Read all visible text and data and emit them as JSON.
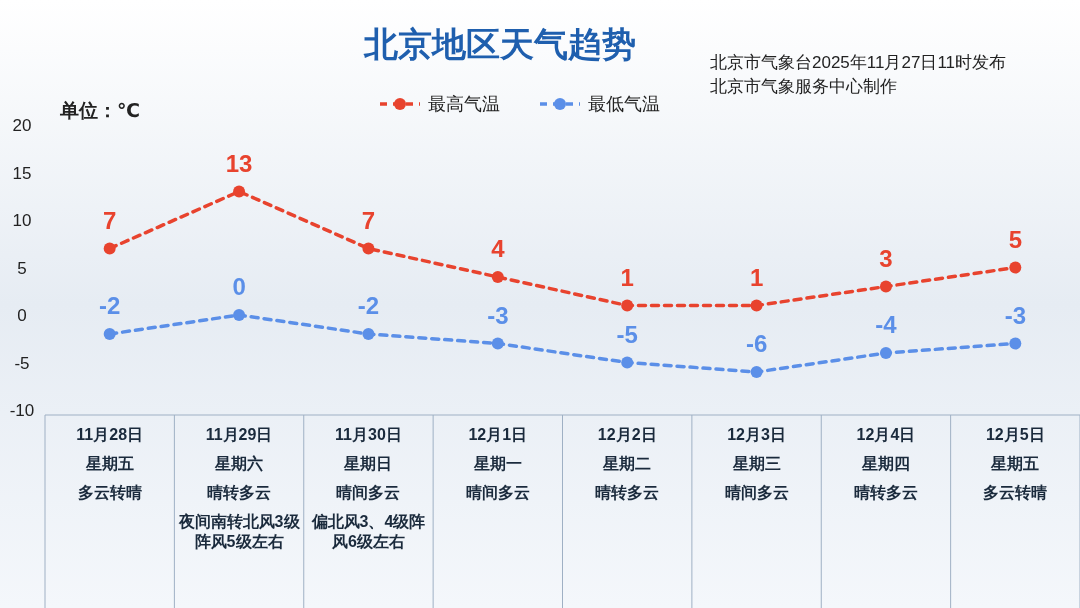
{
  "chart_data": {
    "type": "line",
    "title": "北京地区天气趋势",
    "ylabel": "单位：℃",
    "annotations": [
      "北京市气象台2025年11月27日11时发布",
      "北京市气象服务中心制作",
      "星期五",
      "星期六",
      "星期日",
      "星期一",
      "星期二",
      "星期三",
      "星期四",
      "星期五",
      "多云转晴",
      "晴转多云",
      "晴间多云",
      "晴间多云",
      "晴转多云",
      "晴间多云",
      "晴转多云",
      "多云转晴",
      "夜间南转北风3级阵风5级左右",
      "偏北风3、4级阵风6级左右"
    ],
    "categories": [
      "11月28日",
      "11月29日",
      "11月30日",
      "12月1日",
      "12月2日",
      "12月3日",
      "12月4日",
      "12月5日"
    ],
    "series": [
      {
        "name": "最高气温",
        "color": "#e8432e",
        "values": [
          7,
          13,
          7,
          4,
          1,
          1,
          3,
          5
        ]
      },
      {
        "name": "最低气温",
        "color": "#5b8fe8",
        "values": [
          -2,
          0,
          -2,
          -3,
          -5,
          -6,
          -4,
          -3
        ]
      }
    ],
    "ylim": [
      -10,
      20
    ],
    "yticks": [
      -10,
      -5,
      0,
      5,
      10,
      15,
      20
    ],
    "data_labels": true,
    "legend": "top",
    "marker": "circle",
    "line_style": "dashed",
    "grid": false
  }
}
